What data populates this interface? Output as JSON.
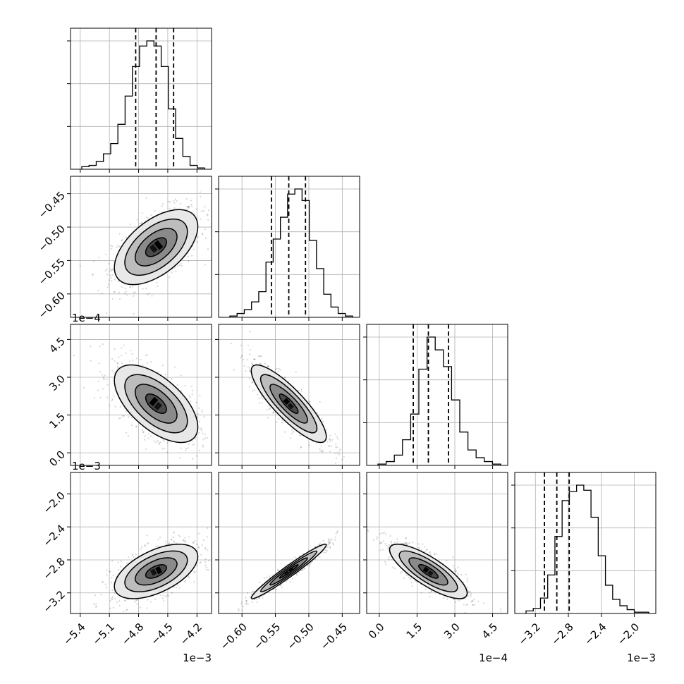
{
  "chart_data": {
    "type": "corner",
    "grid": true,
    "variables": [
      {
        "range": [
          -5.5,
          -4.05
        ],
        "ticks": [
          -5.4,
          -5.1,
          -4.8,
          -4.5,
          -4.2
        ],
        "tick_labels": [
          "−5.4",
          "−5.1",
          "−4.8",
          "−4.5",
          "−4.2"
        ],
        "offset_text": "1e−3",
        "quantiles": [
          -4.83,
          -4.62,
          -4.44
        ]
      },
      {
        "range": [
          -0.635,
          -0.424
        ],
        "ticks": [
          -0.6,
          -0.55,
          -0.5,
          -0.45
        ],
        "tick_labels": [
          "−0.60",
          "−0.55",
          "−0.50",
          "−0.45"
        ],
        "offset_text": "",
        "quantiles": [
          -0.556,
          -0.53,
          -0.505
        ]
      },
      {
        "range": [
          -0.5,
          5.1
        ],
        "ticks": [
          0.0,
          1.5,
          3.0,
          4.5
        ],
        "tick_labels": [
          "0.0",
          "1.5",
          "3.0",
          "4.5"
        ],
        "offset_text": "1e−4",
        "quantiles": [
          1.35,
          1.95,
          2.75
        ]
      },
      {
        "range": [
          -3.45,
          -1.74
        ],
        "ticks": [
          -3.2,
          -2.8,
          -2.4,
          -2.0
        ],
        "tick_labels": [
          "−3.2",
          "−2.8",
          "−2.4",
          "−2.0"
        ],
        "offset_text": "1e−3",
        "quantiles": [
          -3.09,
          -2.94,
          -2.79
        ]
      }
    ],
    "histograms": [
      [
        2,
        3,
        6,
        12,
        20,
        35,
        57,
        80,
        96,
        100,
        96,
        80,
        47,
        24,
        10,
        3,
        1
      ],
      [
        1,
        3,
        6,
        12,
        20,
        43,
        61,
        78,
        96,
        100,
        91,
        60,
        38,
        18,
        8,
        3,
        1
      ],
      [
        1,
        3,
        8,
        20,
        40,
        75,
        100,
        90,
        77,
        51,
        26,
        12,
        6,
        3,
        1
      ],
      [
        2,
        4,
        12,
        30,
        60,
        88,
        95,
        100,
        96,
        75,
        45,
        22,
        11,
        6,
        3,
        1,
        1
      ]
    ],
    "correlations": {
      "1-0": 0.55,
      "2-0": -0.6,
      "2-1": -0.85,
      "3-0": 0.55,
      "3-1": 0.97,
      "3-2": -0.8
    },
    "contour_sigma_levels": [
      0.5,
      1.0,
      1.5,
      2.0
    ]
  }
}
